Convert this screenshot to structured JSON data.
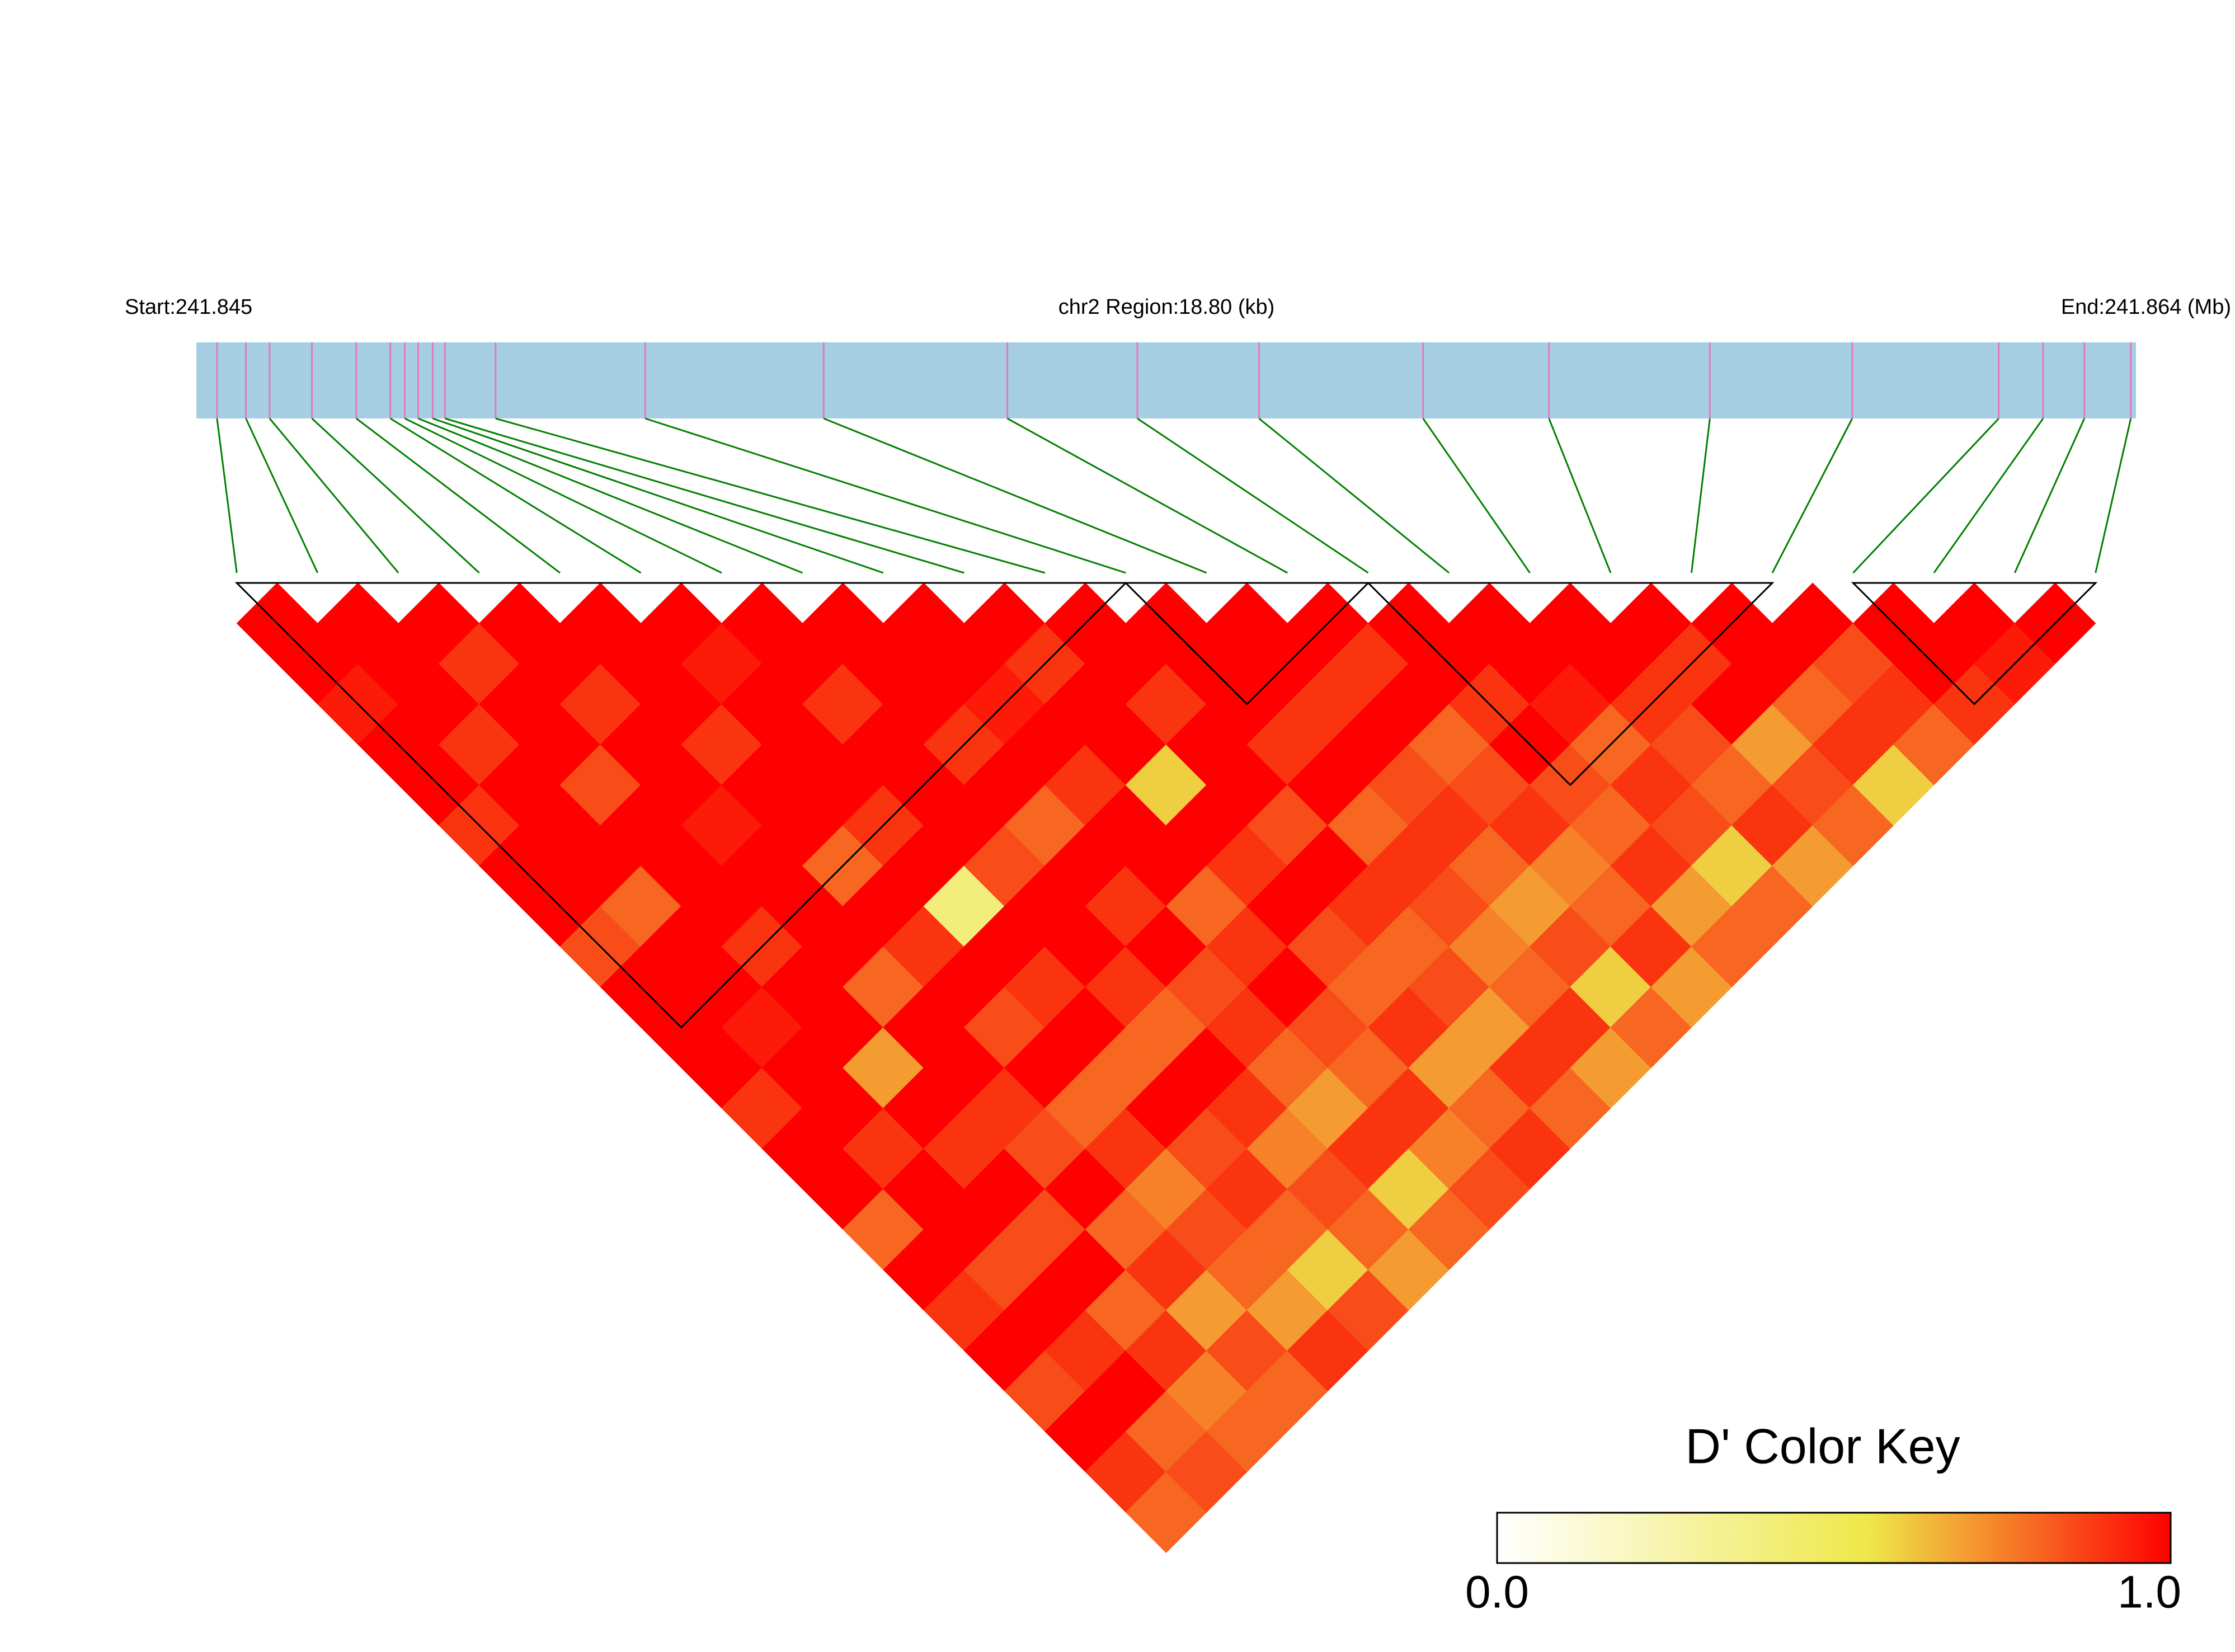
{
  "chart_data": {
    "type": "ld_heatmap",
    "header_left": "Start:241.845",
    "header_center": "chr2 Region:18.80 (kb)",
    "header_right": "End:241.864 (Mb)",
    "xlim": [
      241.845,
      241.8638
    ],
    "snp_positions": [
      241.8452,
      241.84548,
      241.84571,
      241.84612,
      241.84655,
      241.84688,
      241.84702,
      241.84715,
      241.84729,
      241.84741,
      241.8479,
      241.84935,
      241.85108,
      241.85286,
      241.85412,
      241.8553,
      241.85689,
      241.85811,
      241.85967,
      241.86105,
      241.86247,
      241.8629,
      241.8633,
      241.86375
    ],
    "dprime": [
      [
        1,
        1,
        0.95,
        1,
        1,
        0.9,
        1,
        1,
        0.85,
        1,
        1,
        1,
        0.9,
        1,
        1,
        0.8,
        1,
        0.9,
        1,
        0.85,
        1,
        0.9,
        0.8
      ],
      [
        1,
        1,
        1,
        0.9,
        1,
        1,
        1,
        0.8,
        1,
        1,
        0.95,
        1,
        1,
        0.9,
        1,
        1,
        0.85,
        1,
        0.9,
        1,
        0.8,
        0.85
      ],
      [
        1,
        0.9,
        1,
        1,
        0.85,
        1,
        1,
        1,
        0.9,
        1,
        1,
        0.7,
        1,
        0.9,
        1,
        0.85,
        1,
        0.8,
        0.9,
        0.75,
        0.8
      ],
      [
        1,
        1,
        0.9,
        1,
        1,
        0.95,
        1,
        1,
        1,
        0.8,
        1,
        1,
        0.9,
        0.85,
        1,
        0.8,
        0.9,
        0.7,
        0.85,
        0.8
      ],
      [
        1,
        1,
        1,
        0.9,
        1,
        1,
        0.8,
        1,
        0.9,
        1,
        0.85,
        1,
        0.8,
        0.9,
        0.75,
        0.85,
        0.8,
        0.7,
        0.9
      ],
      [
        1,
        0.95,
        1,
        1,
        1,
        0.9,
        1,
        0.4,
        1,
        0.9,
        1,
        0.8,
        1,
        0.85,
        0.9,
        0.8,
        0.6,
        0.85
      ],
      [
        1,
        1,
        0.9,
        1,
        1,
        1,
        0.85,
        1,
        1,
        0.9,
        0.8,
        1,
        0.9,
        0.75,
        0.85,
        0.8,
        0.7
      ],
      [
        1,
        1,
        1,
        0.9,
        1,
        0.8,
        1,
        0.9,
        1,
        0.85,
        0.9,
        0.8,
        0.7,
        0.9,
        0.6,
        0.8
      ],
      [
        1,
        1,
        0.95,
        1,
        0.9,
        1,
        1,
        0.8,
        0.9,
        1,
        0.85,
        0.8,
        0.9,
        0.75,
        0.85
      ],
      [
        1,
        0.9,
        1,
        1,
        0.6,
        1,
        0.9,
        1,
        0.85,
        0.8,
        0.9,
        0.7,
        0.8,
        0.9
      ],
      [
        1,
        1,
        0.9,
        1,
        1,
        0.85,
        1,
        0.9,
        0.8,
        0.85,
        0.7,
        0.9,
        0.8
      ],
      [
        1,
        1,
        1,
        0.9,
        1,
        0.8,
        0.9,
        0.85,
        0.75,
        0.8,
        0.9,
        0.7
      ],
      [
        1,
        1,
        0.9,
        1,
        0.85,
        0.9,
        0.8,
        0.7,
        0.85,
        0.6,
        0.8
      ],
      [
        1,
        0.9,
        1,
        0.8,
        0.85,
        0.9,
        0.75,
        0.8,
        0.9,
        0.7
      ],
      [
        1,
        1,
        0.9,
        1,
        0.85,
        0.8,
        0.9,
        0.7,
        0.8
      ],
      [
        1,
        1,
        0.95,
        0.8,
        0.9,
        0.85,
        0.6,
        0.8
      ],
      [
        1,
        1,
        0.9,
        0.85,
        0.8,
        0.9,
        0.7
      ],
      [
        1,
        0.9,
        1,
        0.7,
        0.85,
        0.8
      ],
      [
        1,
        1,
        0.8,
        0.9,
        0.6
      ],
      [
        1,
        0.85,
        0.9,
        0.8
      ],
      [
        1,
        1,
        0.9
      ],
      [
        1,
        0.95
      ],
      [
        1
      ]
    ],
    "blocks": [
      [
        0,
        11
      ],
      [
        11,
        14
      ],
      [
        14,
        19
      ],
      [
        20,
        23
      ]
    ],
    "color_key": {
      "title": "D' Color Key",
      "range": [
        0,
        1
      ],
      "ticks": [
        {
          "value": 0,
          "label": "0.0"
        },
        {
          "value": 1,
          "label": "1.0"
        }
      ]
    }
  }
}
